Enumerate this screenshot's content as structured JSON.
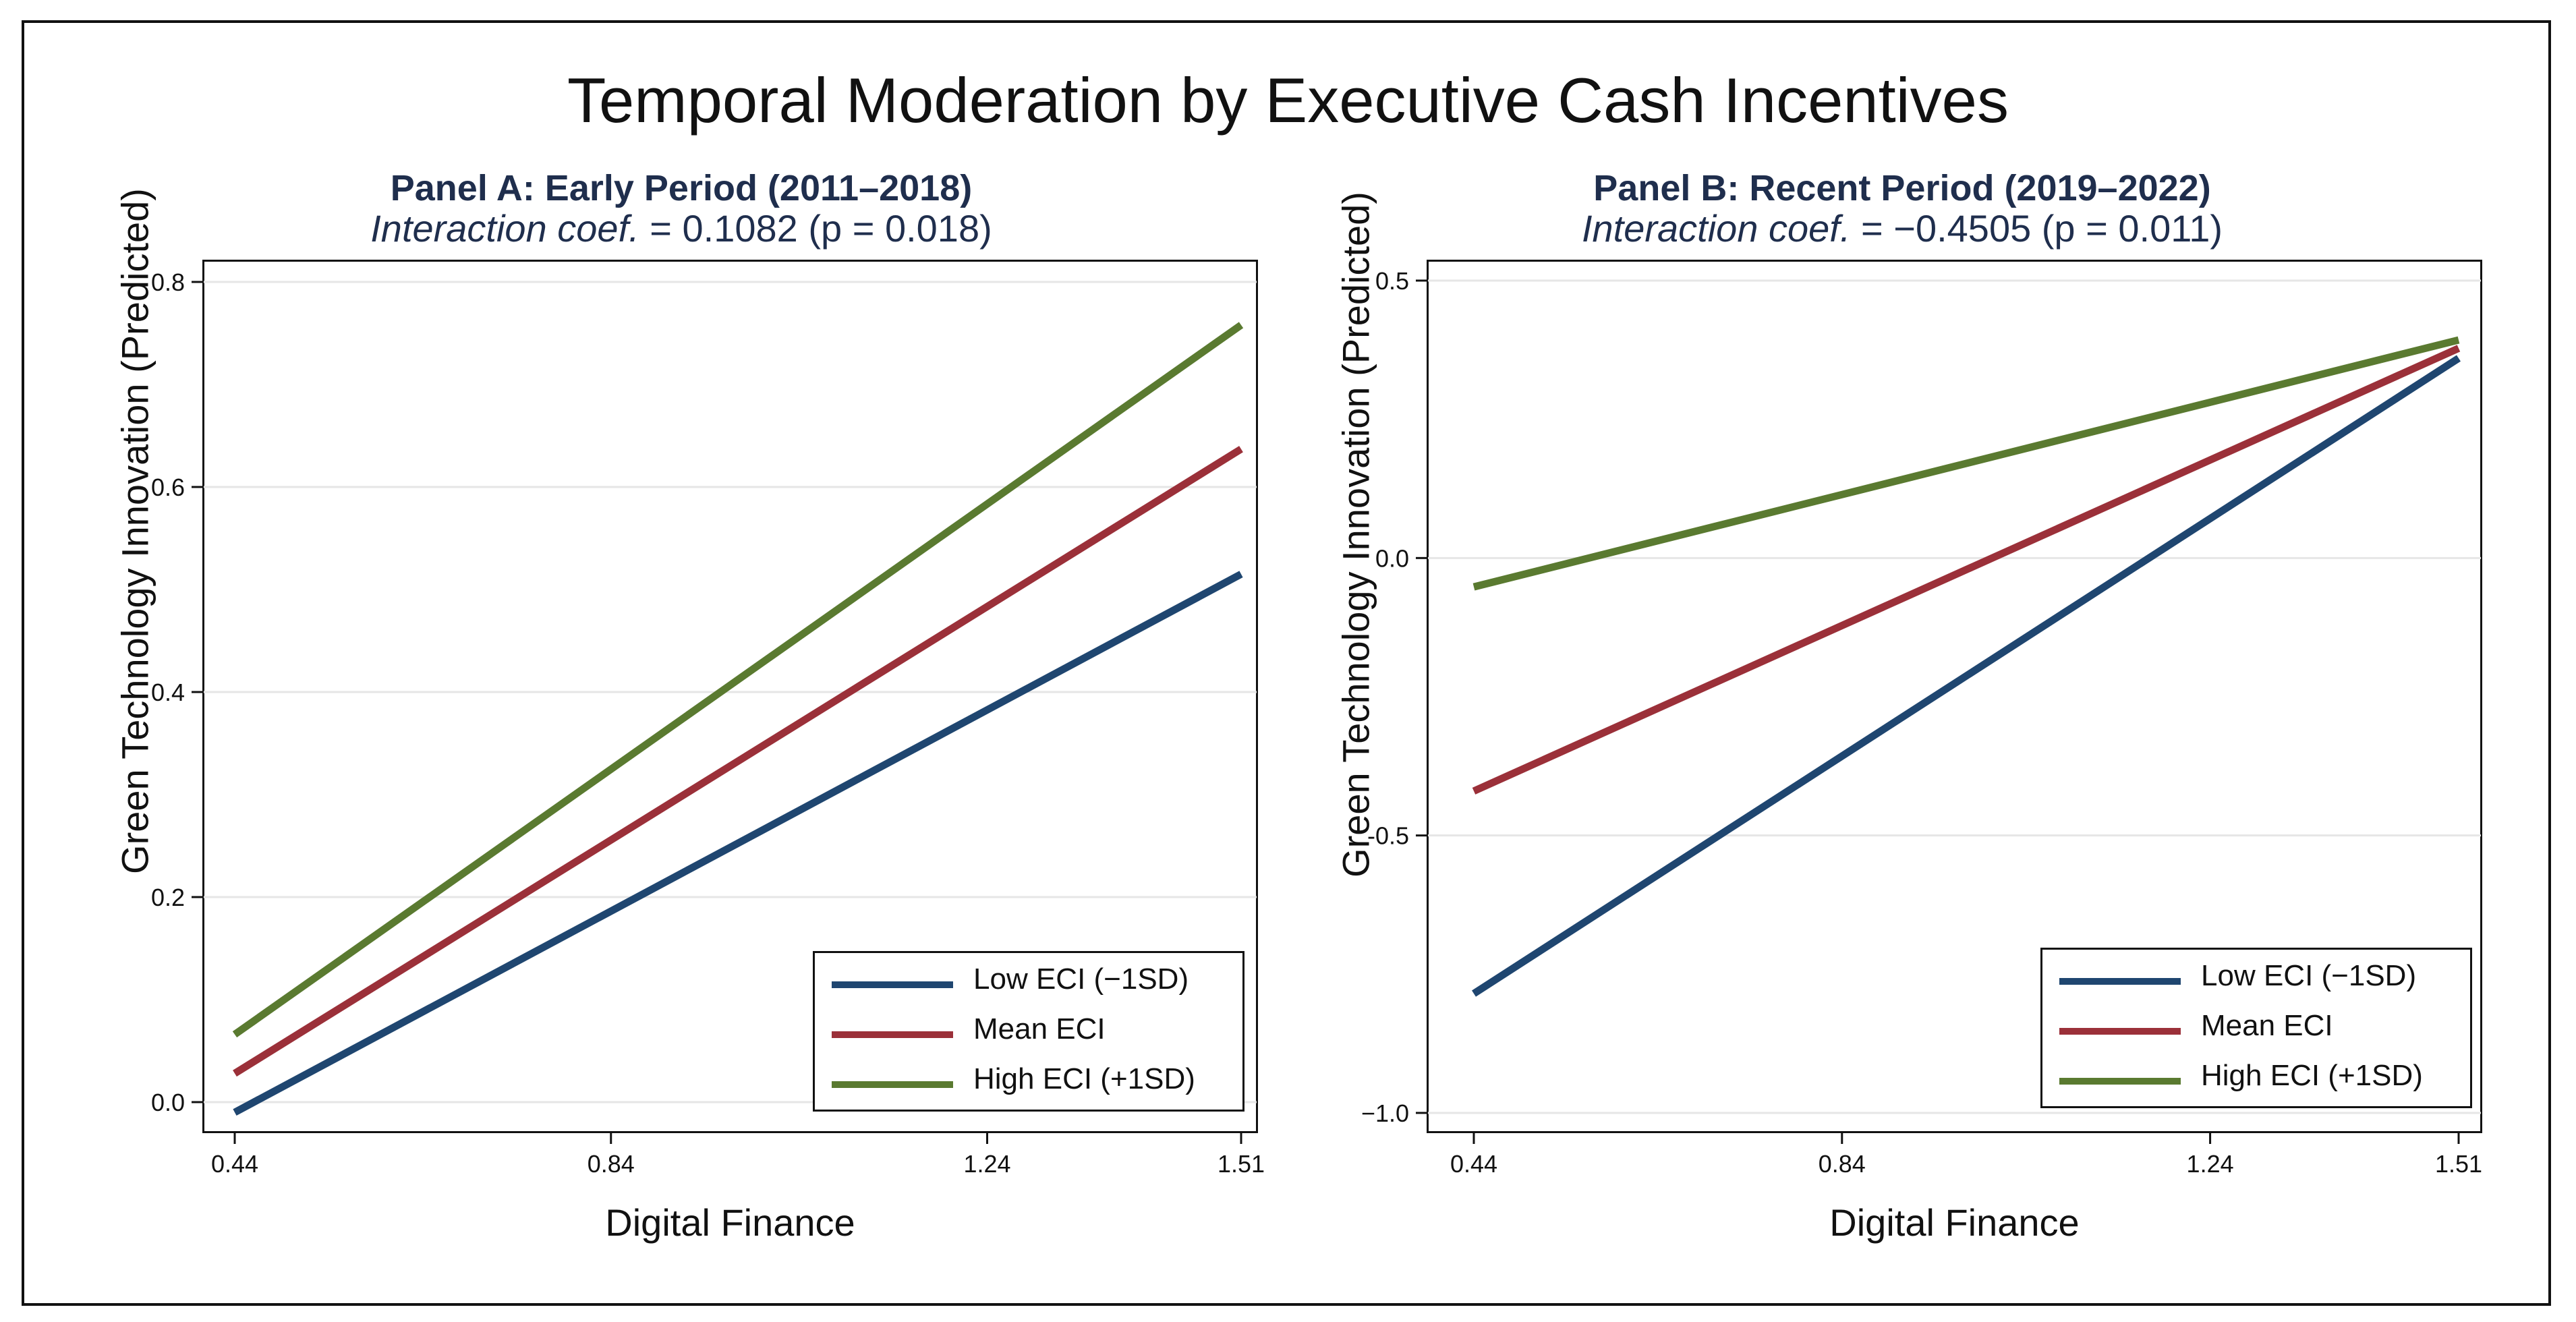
{
  "title": "Temporal Moderation by Executive Cash Incentives",
  "colors": {
    "low": "#1f4670",
    "mean": "#9b3039",
    "high": "#5a7a30",
    "grid": "#e6e6e6",
    "title_blue": "#1f2e4d"
  },
  "chart_data": [
    {
      "type": "line",
      "title": "Panel A: Early Period (2011–2018)",
      "subtitle_italic": "Interaction coef.",
      "subtitle_rest": " = 0.1082 (p = 0.018)",
      "xlabel": "Digital Finance",
      "ylabel": "Green Technology Innovation (Predicted)",
      "xlim": [
        0.4,
        1.55
      ],
      "ylim": [
        -0.01,
        0.8
      ],
      "xticks": [
        0.44,
        0.84,
        1.24,
        1.51
      ],
      "xtick_labels": [
        "0.44",
        "0.84",
        "1.24",
        "1.51"
      ],
      "yticks": [
        0.0,
        0.2,
        0.4,
        0.6,
        0.8
      ],
      "ytick_labels": [
        "0.0",
        "0.2",
        "0.4",
        "0.6",
        "0.8"
      ],
      "grid": true,
      "legend_position": "bottom-right",
      "series": [
        {
          "name": "Low ECI (−1SD)",
          "key": "low",
          "x": [
            0.44,
            1.51
          ],
          "y": [
            -0.01,
            0.515
          ]
        },
        {
          "name": "Mean ECI",
          "key": "mean",
          "x": [
            0.44,
            1.51
          ],
          "y": [
            0.028,
            0.637
          ]
        },
        {
          "name": "High ECI (+1SD)",
          "key": "high",
          "x": [
            0.44,
            1.51
          ],
          "y": [
            0.066,
            0.758
          ]
        }
      ]
    },
    {
      "type": "line",
      "title": "Panel B: Recent Period (2019–2022)",
      "subtitle_italic": "Interaction coef.",
      "subtitle_rest": " = −0.4505 (p = 0.011)",
      "xlabel": "Digital Finance",
      "ylabel": "Green Technology Innovation (Predicted)",
      "xlim": [
        0.4,
        1.55
      ],
      "ylim": [
        -1.0,
        0.5
      ],
      "xticks": [
        0.44,
        0.84,
        1.24,
        1.51
      ],
      "xtick_labels": [
        "0.44",
        "0.84",
        "1.24",
        "1.51"
      ],
      "yticks": [
        -1.0,
        -0.5,
        0.0,
        0.5
      ],
      "ytick_labels": [
        "−1.0",
        "-0.5",
        "0.0",
        "0.5"
      ],
      "grid": true,
      "legend_position": "bottom-right",
      "series": [
        {
          "name": "Low ECI (−1SD)",
          "key": "low",
          "x": [
            0.44,
            1.51
          ],
          "y": [
            -0.785,
            0.36
          ]
        },
        {
          "name": "Mean ECI",
          "key": "mean",
          "x": [
            0.44,
            1.51
          ],
          "y": [
            -0.42,
            0.378
          ]
        },
        {
          "name": "High ECI (+1SD)",
          "key": "high",
          "x": [
            0.44,
            1.51
          ],
          "y": [
            -0.052,
            0.393
          ]
        }
      ]
    }
  ]
}
